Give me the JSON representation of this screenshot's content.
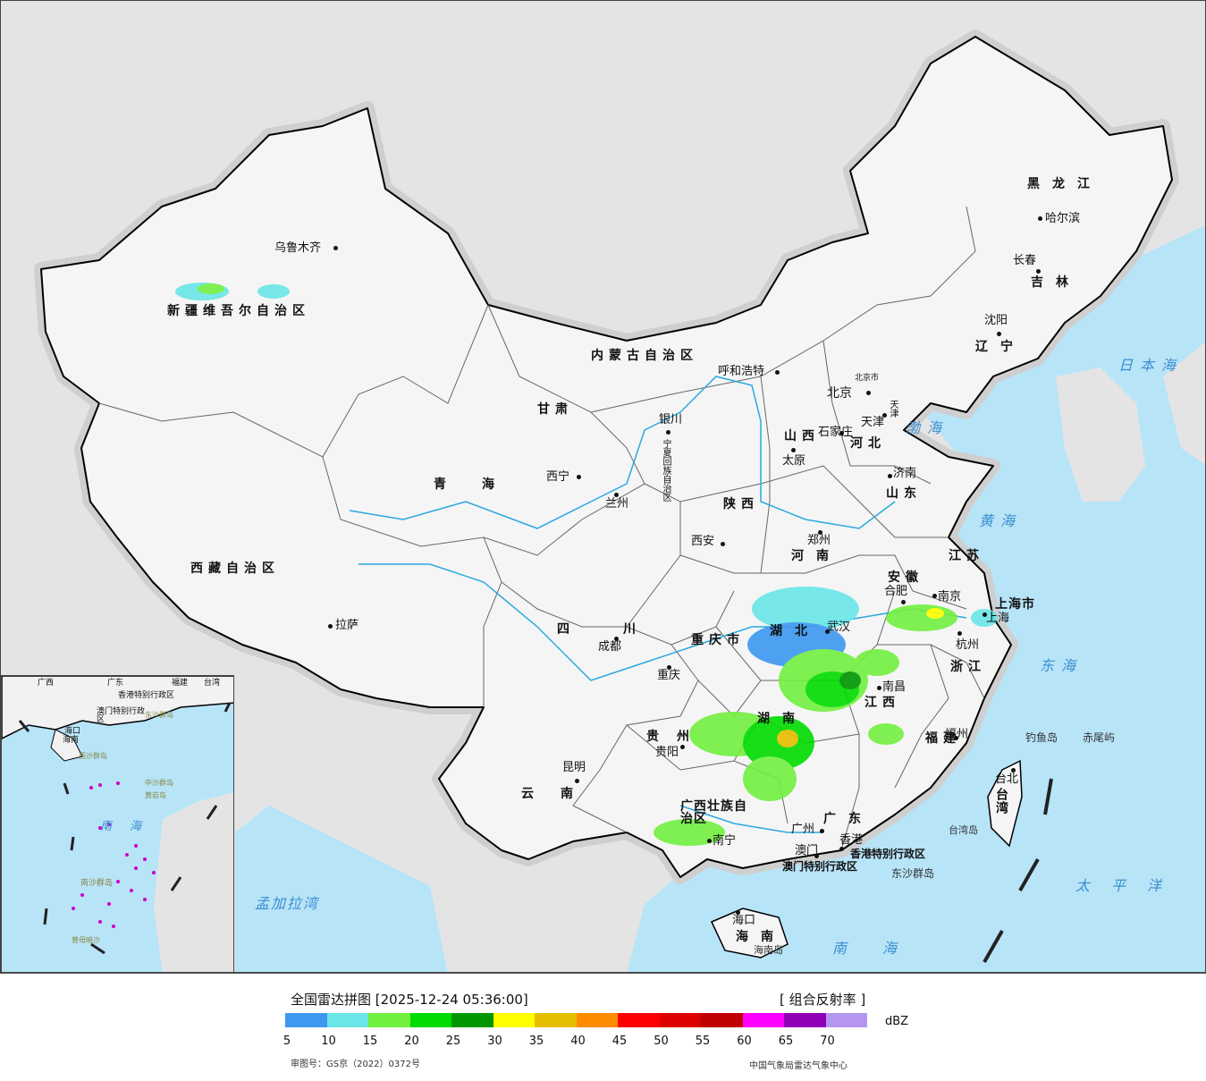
{
  "map": {
    "cities": [
      {
        "name": "乌鲁木齐",
        "pos": "tl"
      },
      {
        "name": "拉萨",
        "pos": "tl"
      },
      {
        "name": "西宁",
        "pos": "tl"
      },
      {
        "name": "兰州",
        "pos": "tl"
      },
      {
        "name": "银川",
        "pos": "tl"
      },
      {
        "name": "呼和浩特",
        "pos": "tl"
      },
      {
        "name": "北京",
        "pos": "tl"
      },
      {
        "name": "天津",
        "pos": "tl"
      },
      {
        "name": "石家庄",
        "pos": "tl"
      },
      {
        "name": "太原",
        "pos": "tl"
      },
      {
        "name": "济南",
        "pos": "tl"
      },
      {
        "name": "郑州",
        "pos": "tl"
      },
      {
        "name": "西安",
        "pos": "tl"
      },
      {
        "name": "成都",
        "pos": "tl"
      },
      {
        "name": "重庆",
        "pos": "tl"
      },
      {
        "name": "武汉",
        "pos": "tl"
      },
      {
        "name": "合肥",
        "pos": "tl"
      },
      {
        "name": "南京",
        "pos": "tl"
      },
      {
        "name": "上海",
        "pos": "tl"
      },
      {
        "name": "杭州",
        "pos": "tl"
      },
      {
        "name": "南昌",
        "pos": "tl"
      },
      {
        "name": "福州",
        "pos": "tl"
      },
      {
        "name": "台北",
        "pos": "tl"
      },
      {
        "name": "贵阳",
        "pos": "tl"
      },
      {
        "name": "昆明",
        "pos": "tl"
      },
      {
        "name": "南宁",
        "pos": "tl"
      },
      {
        "name": "广州",
        "pos": "tl"
      },
      {
        "name": "澳门",
        "pos": "tl"
      },
      {
        "name": "香港",
        "pos": "tl"
      },
      {
        "name": "海口",
        "pos": "tl"
      },
      {
        "name": "哈尔滨",
        "pos": "tl"
      },
      {
        "name": "长春",
        "pos": "tl"
      },
      {
        "name": "沈阳",
        "pos": "tl"
      }
    ],
    "provinces": [
      "新疆维吾尔自治区",
      "西藏自治区",
      "青海",
      "甘肃",
      "内蒙古自治区",
      "黑龙江",
      "吉林",
      "辽宁",
      "河北",
      "山西",
      "山东",
      "河南",
      "陕西",
      "四川",
      "重庆市",
      "湖北",
      "湖南",
      "江西",
      "安徽",
      "江苏",
      "浙江",
      "福建",
      "贵州",
      "云南",
      "广西壮族自治区",
      "广东",
      "海南",
      "上海市",
      "台湾",
      "香港特别行政区",
      "澳门特别行政区",
      "宁夏回族自治区",
      "天津",
      "北京市"
    ],
    "seas": [
      "渤海",
      "黄海",
      "东海",
      "日本海",
      "南海",
      "太平洋",
      "孟加拉湾"
    ],
    "islands": [
      "钓鱼岛",
      "赤尾屿",
      "台湾岛",
      "东沙群岛",
      "海南岛"
    ],
    "inset_labels": [
      "广东",
      "广西",
      "福建",
      "台湾",
      "香港特别行政区",
      "澳门特别行政区",
      "海南",
      "东沙群岛",
      "西沙群岛",
      "中沙群岛",
      "黄岩岛",
      "南海",
      "南沙群岛",
      "曾母暗沙",
      "海口"
    ]
  },
  "legend": {
    "title": "全国雷达拼图 [2025-12-24 05:36:00]",
    "product": "[ 组合反射率 ]",
    "unit": "dBZ",
    "colors": [
      "#3d98f0",
      "#6ae6e8",
      "#72f040",
      "#00dc00",
      "#009600",
      "#ffff00",
      "#e6be00",
      "#ff8c00",
      "#ff0000",
      "#dc0000",
      "#c00000",
      "#ff00ff",
      "#9000b4",
      "#b496f0"
    ],
    "ticks": [
      "5",
      "10",
      "15",
      "20",
      "25",
      "30",
      "35",
      "40",
      "45",
      "50",
      "55",
      "60",
      "65",
      "70"
    ],
    "approval": "审图号：GS京（2022）0372号",
    "source": "中国气象局雷达气象中心"
  }
}
